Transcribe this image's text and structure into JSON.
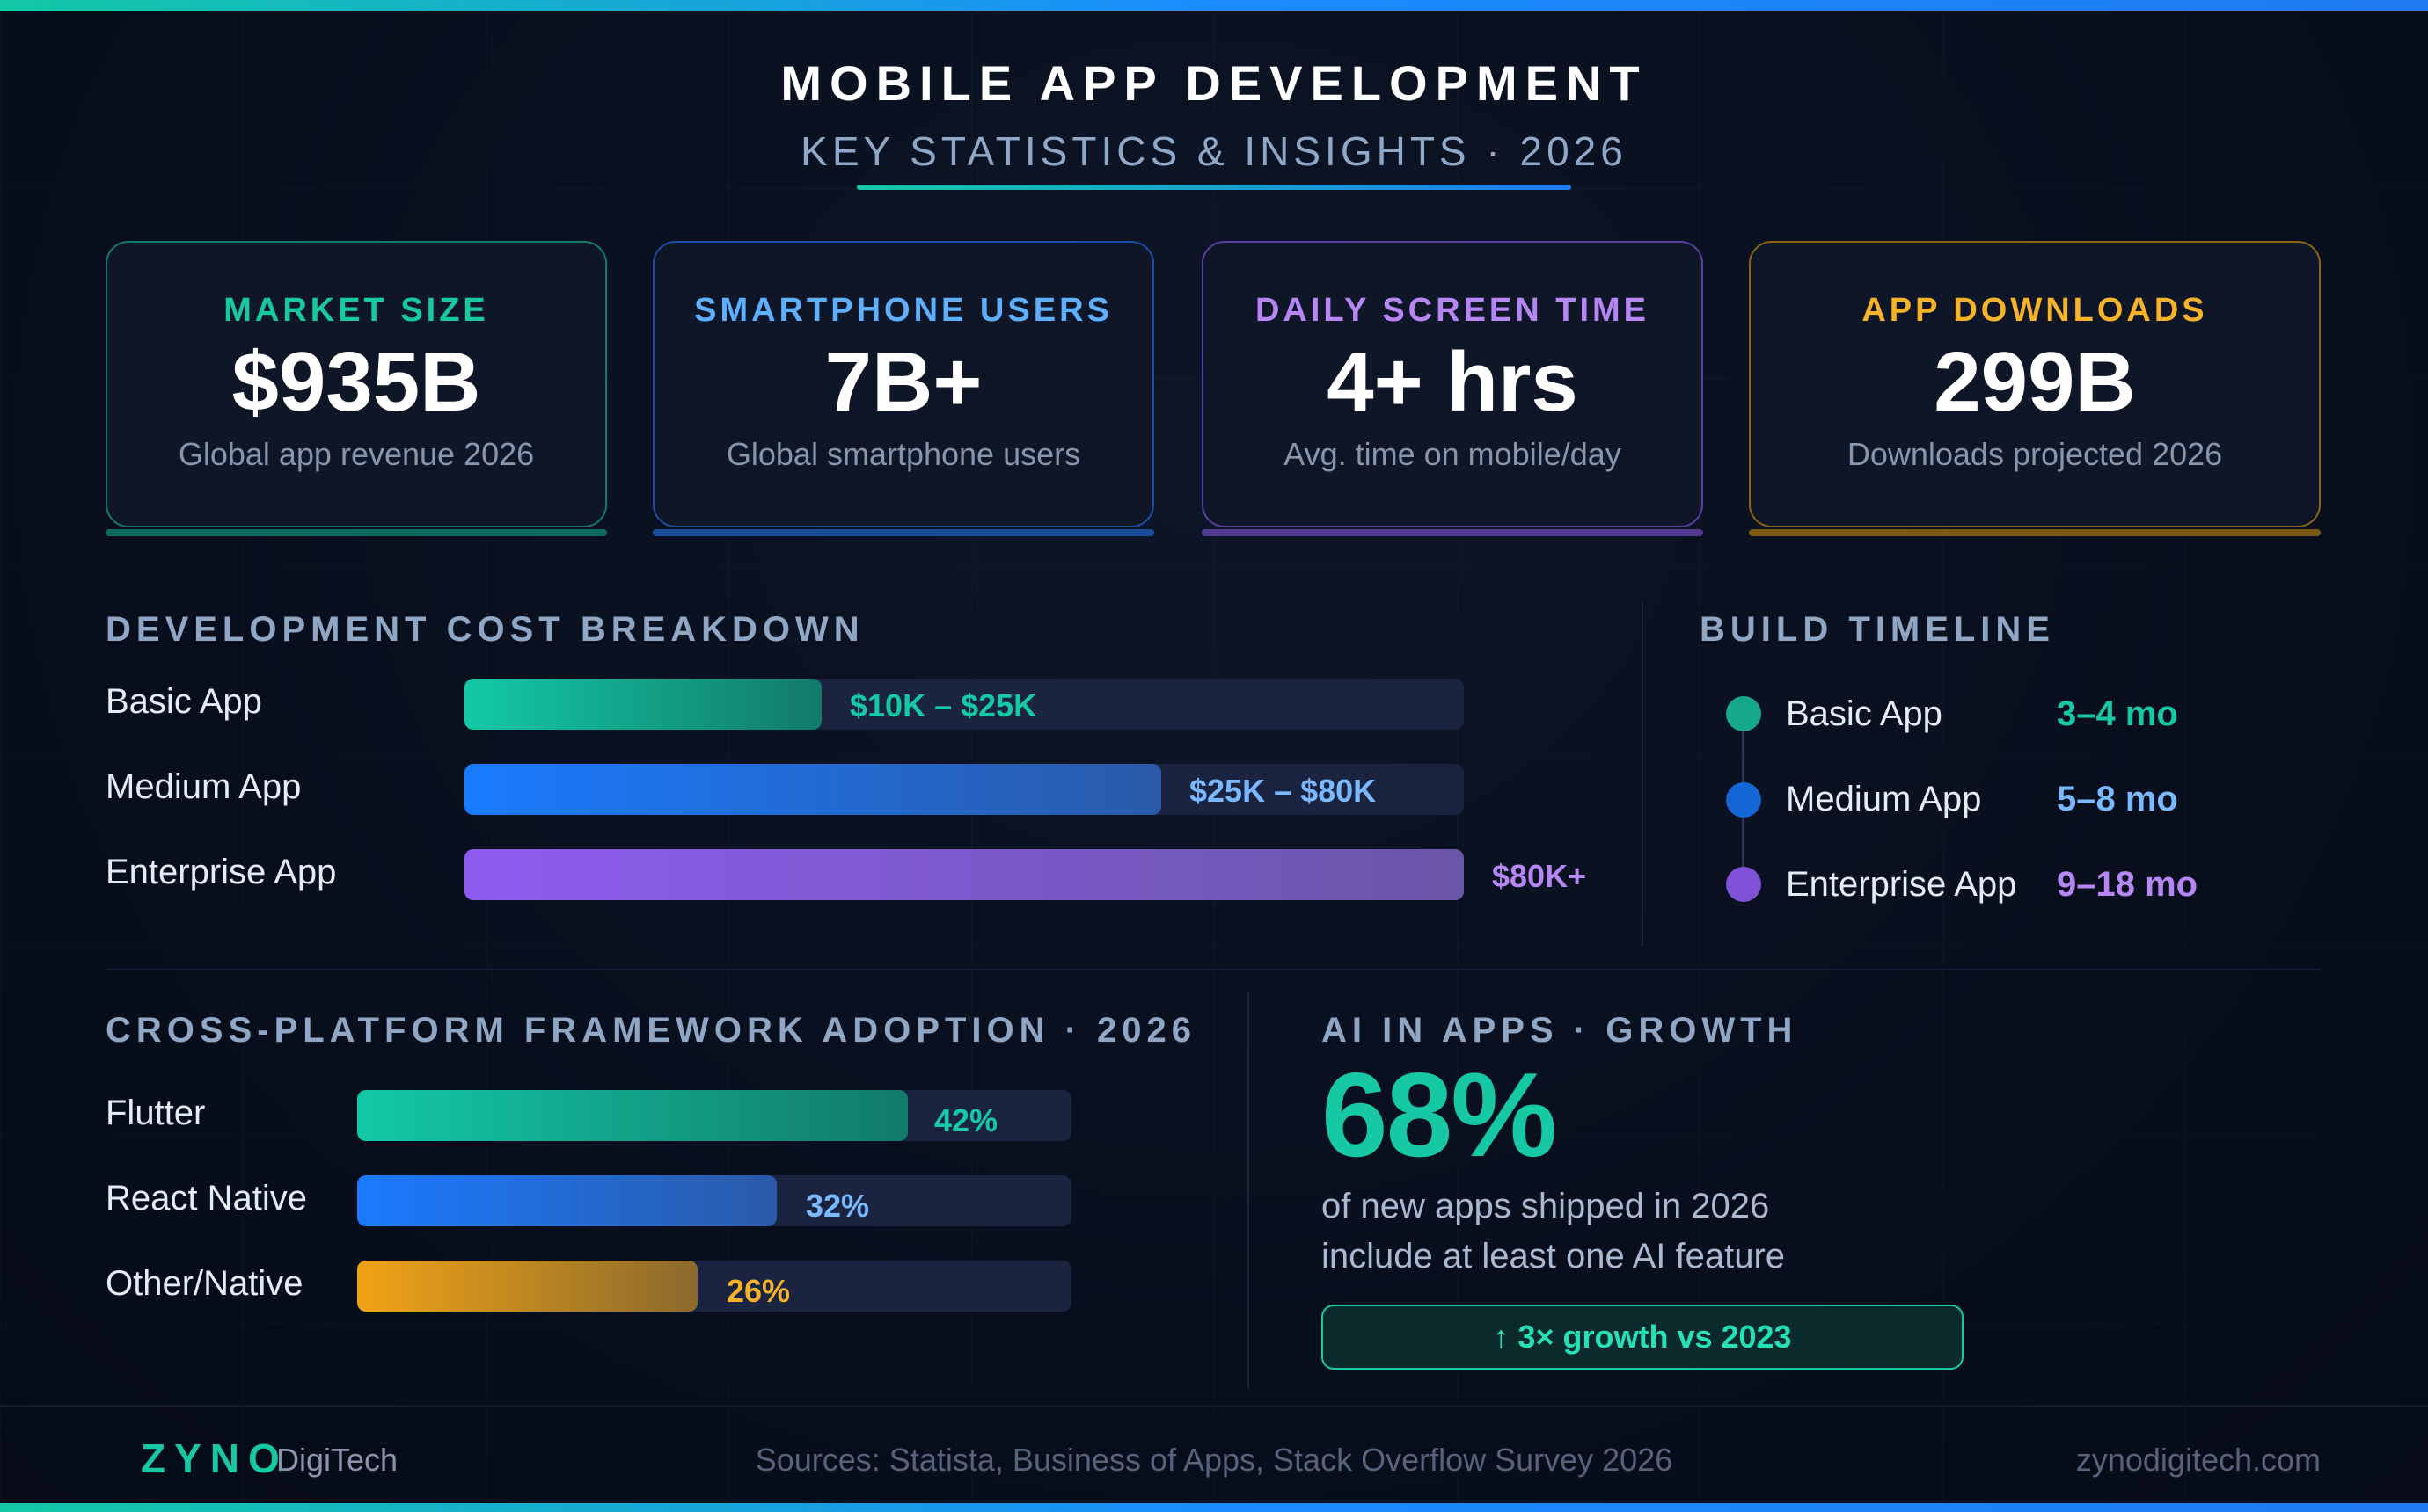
{
  "header": {
    "title": "MOBILE APP DEVELOPMENT",
    "subtitle": "KEY STATISTICS & INSIGHTS · 2026"
  },
  "stats": [
    {
      "label": "MARKET SIZE",
      "value": "$935B",
      "desc": "Global app revenue 2026",
      "color": "#16c9a4"
    },
    {
      "label": "SMARTPHONE USERS",
      "value": "7B+",
      "desc": "Global smartphone users",
      "color": "#5eb0ff"
    },
    {
      "label": "DAILY SCREEN TIME",
      "value": "4+ hrs",
      "desc": "Avg. time on mobile/day",
      "color": "#b786f5"
    },
    {
      "label": "APP DOWNLOADS",
      "value": "299B",
      "desc": "Downloads projected 2026",
      "color": "#f6b32a"
    }
  ],
  "cost": {
    "heading": "DEVELOPMENT COST BREAKDOWN",
    "rows": [
      {
        "name": "Basic App",
        "range": "$10K – $25K",
        "fill": 0.357,
        "color": "#16c9a4"
      },
      {
        "name": "Medium App",
        "range": "$25K – $80K",
        "fill": 0.697,
        "color": "#5eb0ff"
      },
      {
        "name": "Enterprise App",
        "range": "$80K+",
        "fill": 1.0,
        "color": "#b786f5"
      }
    ]
  },
  "timeline": {
    "heading": "BUILD TIMELINE",
    "items": [
      {
        "name": "Basic App",
        "duration": "3–4 mo",
        "color": "#16c9a4"
      },
      {
        "name": "Medium App",
        "duration": "5–8 mo",
        "color": "#5eb0ff"
      },
      {
        "name": "Enterprise App",
        "duration": "9–18 mo",
        "color": "#b786f5"
      }
    ]
  },
  "frameworks": {
    "heading": "CROSS-PLATFORM FRAMEWORK ADOPTION · 2026",
    "rows": [
      {
        "name": "Flutter",
        "percent": 42,
        "label": "42%",
        "color": "#16c9a4"
      },
      {
        "name": "React Native",
        "percent": 32,
        "label": "32%",
        "color": "#5eb0ff"
      },
      {
        "name": "Other/Native",
        "percent": 26,
        "label": "26%",
        "color": "#f6b32a"
      }
    ]
  },
  "ai": {
    "heading": "AI IN APPS · GROWTH",
    "big": "68%",
    "line1": "of new apps shipped in 2026",
    "line2": "include at least one AI feature",
    "badge": "↑ 3× growth vs 2023"
  },
  "footer": {
    "brand": "ZYNO",
    "brand_suffix": "DigiTech",
    "sources": "Sources: Statista, Business of Apps, Stack Overflow Survey 2026",
    "url": "zynodigitech.com"
  }
}
